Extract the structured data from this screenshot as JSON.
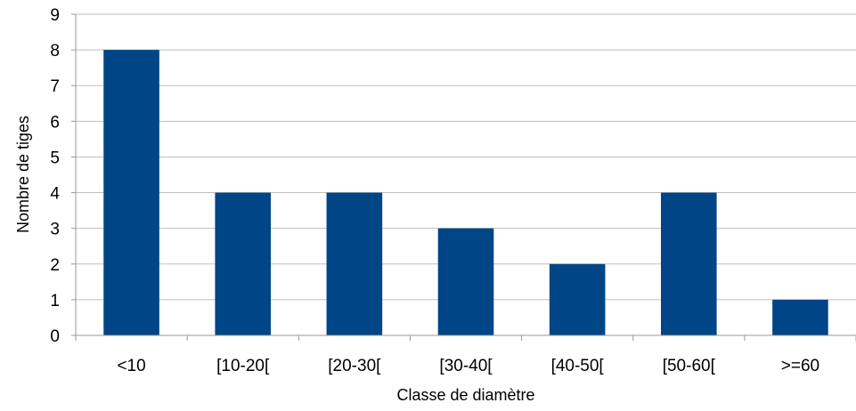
{
  "chart_data": {
    "type": "bar",
    "title": "",
    "xlabel": "Classe de diamètre",
    "ylabel": "Nombre de tiges",
    "categories": [
      "<10",
      "[10-20[",
      "[20-30[",
      "[30-40[",
      "[40-50[",
      "[50-60[",
      ">=60"
    ],
    "values": [
      8,
      4,
      4,
      3,
      2,
      4,
      1
    ],
    "ylim": [
      0,
      9
    ],
    "yticks": [
      "0",
      "1",
      "2",
      "3",
      "4",
      "5",
      "6",
      "7",
      "8",
      "9"
    ],
    "grid": true,
    "legend": "none",
    "colors": {
      "bar": "#004585",
      "grid": "#bfbfbf",
      "axis": "#999999"
    }
  }
}
